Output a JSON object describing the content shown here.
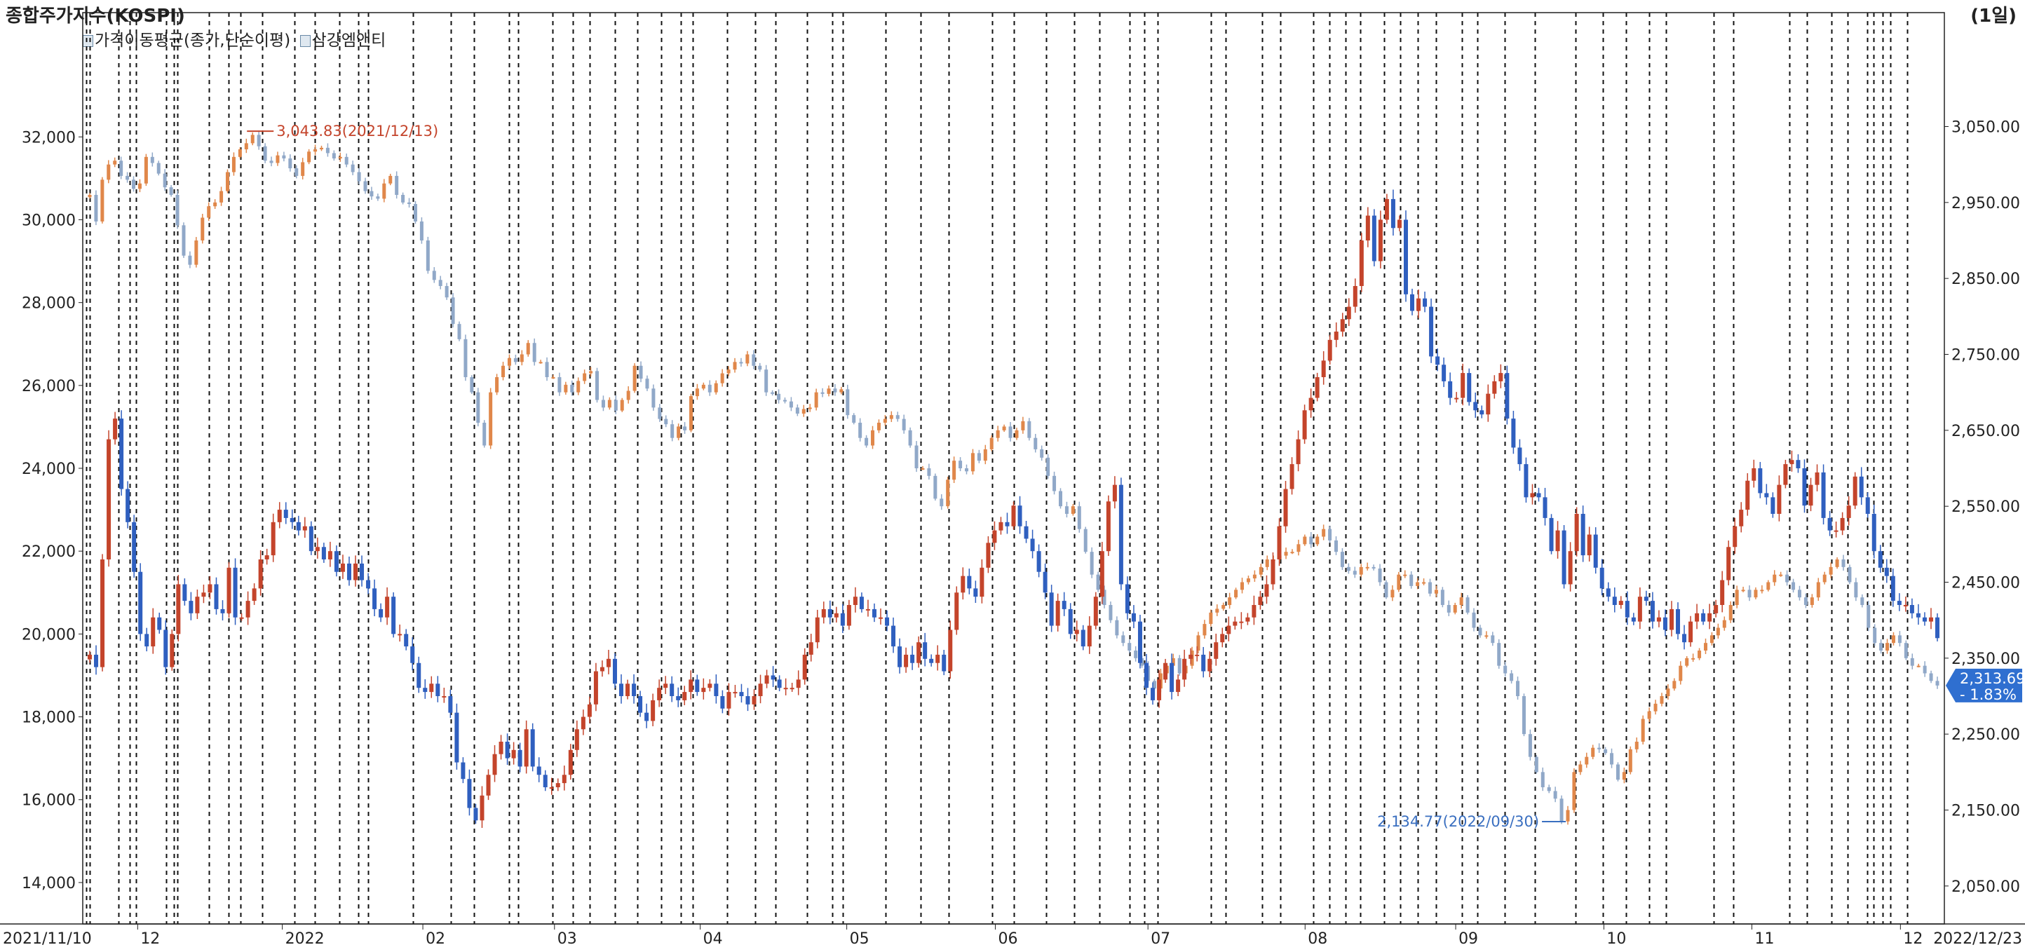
{
  "header": {
    "title": "종합주가지수(KOSPI)",
    "period": "(1일)"
  },
  "legend": [
    {
      "label": "가격이동평균(종가,단순이평)",
      "color": "#9fb3c8"
    },
    {
      "label": "삼강엠앤티",
      "color": "#9fb3c8"
    }
  ],
  "chart_data": {
    "type": "candlestick",
    "x_start_label": "2021/11/10",
    "x_end_label": "2022/12/23",
    "x_ticks": [
      "12",
      "2022",
      "02",
      "03",
      "04",
      "05",
      "06",
      "07",
      "08",
      "09",
      "10",
      "11",
      "12"
    ],
    "left_axis": {
      "ticks": [
        "32,000",
        "30,000",
        "28,000",
        "26,000",
        "24,000",
        "22,000",
        "20,000",
        "18,000",
        "16,000",
        "14,000"
      ],
      "range": [
        13000,
        35000
      ]
    },
    "right_axis": {
      "ticks": [
        "3,050.00",
        "2,950.00",
        "2,850.00",
        "2,750.00",
        "2,650.00",
        "2,550.00",
        "2,450.00",
        "2,350.00",
        "2,250.00",
        "2,150.00",
        "2,050.00"
      ],
      "range": [
        2000,
        3200
      ]
    },
    "annotations": {
      "high": {
        "label": "3,043.83(2021/12/13)",
        "date": "2021/12/13",
        "value": 3043.83
      },
      "low": {
        "label": "2,134.77(2022/09/30)",
        "date": "2022/09/30",
        "value": 2134.77
      }
    },
    "last_value": {
      "value": "2,313.69",
      "change": "- 1.83%"
    },
    "colors": {
      "up": "#c4442b",
      "down": "#2f5fbf",
      "kospi_up": "#e0874a",
      "kospi_down": "#90a8c8",
      "up_label": "#c4442b",
      "low_label": "#3a6fc0",
      "last_value_badge": "#2f6fd0"
    },
    "series": [
      {
        "name": "삼강엠앤티",
        "axis": "left",
        "values": [
          19500,
          19200,
          21800,
          24700,
          25200,
          23500,
          22700,
          21500,
          20000,
          19700,
          20400,
          20100,
          19200,
          20000,
          21200,
          20800,
          20500,
          20900,
          21000,
          21200,
          20600,
          20500,
          21600,
          20400,
          20400,
          20800,
          21100,
          21800,
          21900,
          22700,
          23000,
          22800,
          22700,
          22500,
          22600,
          22000,
          22100,
          21800,
          22000,
          21500,
          21700,
          21300,
          21700,
          21300,
          21100,
          20600,
          20400,
          20900,
          20000,
          20000,
          19700,
          19300,
          18700,
          18600,
          18800,
          18500,
          18500,
          18100,
          16900,
          16500,
          15800,
          15500,
          16100,
          16600,
          17100,
          17400,
          17000,
          17200,
          16800,
          17700,
          16800,
          16600,
          16300,
          16300,
          16400,
          16600,
          17200,
          17700,
          18000,
          18300,
          19100,
          19200,
          19400,
          18800,
          18500,
          18800,
          18500,
          18100,
          17900,
          18400,
          18700,
          18800,
          18500,
          18400,
          18600,
          18900,
          18600,
          18700,
          18800,
          18500,
          18200,
          18600,
          18600,
          18500,
          18300,
          18500,
          18800,
          19000,
          18900,
          18700,
          18700,
          18700,
          18900,
          19500,
          19800,
          20400,
          20600,
          20400,
          20500,
          20200,
          20700,
          20900,
          20600,
          20600,
          20400,
          20400,
          20200,
          19700,
          19200,
          19500,
          19300,
          19800,
          19400,
          19300,
          19500,
          19100,
          20100,
          21000,
          21400,
          21100,
          20900,
          21600,
          22200,
          22500,
          22700,
          22600,
          23100,
          22600,
          22300,
          22000,
          21500,
          21000,
          20200,
          20800,
          20600,
          20000,
          20100,
          19700,
          20200,
          20900,
          22000,
          23200,
          23600,
          21200,
          20500,
          20300,
          19300,
          18700,
          18400,
          18900,
          19300,
          18600,
          18900,
          19400,
          19500,
          19500,
          19100,
          19400,
          19800,
          20000,
          20200,
          20300,
          20300,
          20400,
          20700,
          20900,
          21200,
          21800,
          22600,
          23500,
          24100,
          24700,
          25400,
          25700,
          26200,
          26600,
          27100,
          27300,
          27600,
          27900,
          28400,
          29500,
          30100,
          29000,
          30000,
          30500,
          29800,
          30000,
          28200,
          27800,
          28100,
          27900,
          26700,
          26500,
          26100,
          25700,
          25700,
          26300,
          25600,
          25400,
          25300,
          25800,
          26100,
          26300,
          25200,
          24500,
          24100,
          23300,
          23400,
          23300,
          22800,
          22000,
          22500,
          21200,
          22000,
          22900,
          21900,
          22400,
          21600,
          21100,
          20900,
          20700,
          20800,
          20400,
          20300,
          20900,
          20800,
          20300,
          20400,
          20100,
          20600,
          20000,
          19800,
          20300,
          20500,
          20300,
          20500,
          20700,
          21300,
          22100,
          22600,
          23000,
          23700,
          24000,
          23400,
          23300,
          22900,
          23600,
          24100,
          24200,
          24000,
          23100,
          23600,
          23900,
          22800,
          22500,
          22500,
          22800,
          23100,
          23800,
          23300,
          22900,
          22000,
          21600,
          21400,
          20800,
          20700,
          20700,
          20500,
          20400,
          20300,
          20400,
          19900
        ]
      },
      {
        "name": "종합주가지수(KOSPI)",
        "axis": "right",
        "values": [
          2960,
          2925,
          2980,
          3000,
          3005,
          2985,
          2980,
          2968,
          2975,
          3010,
          3002,
          2988,
          2970,
          2960,
          2920,
          2880,
          2868,
          2900,
          2930,
          2945,
          2950,
          2965,
          2990,
          3010,
          3020,
          3028,
          3039,
          3024,
          3005,
          3002,
          3012,
          3008,
          2995,
          2985,
          3003,
          3017,
          3020,
          3022,
          3015,
          3008,
          3010,
          3000,
          2990,
          2978,
          2965,
          2958,
          2955,
          2975,
          2985,
          2960,
          2950,
          2948,
          2925,
          2900,
          2860,
          2848,
          2840,
          2825,
          2790,
          2770,
          2720,
          2700,
          2660,
          2630,
          2700,
          2720,
          2735,
          2745,
          2740,
          2750,
          2765,
          2740,
          2740,
          2720,
          2720,
          2700,
          2710,
          2700,
          2715,
          2725,
          2728,
          2690,
          2680,
          2690,
          2676,
          2690,
          2702,
          2735,
          2718,
          2705,
          2680,
          2665,
          2658,
          2640,
          2655,
          2650,
          2695,
          2705,
          2710,
          2700,
          2712,
          2725,
          2730,
          2740,
          2738,
          2750,
          2735,
          2730,
          2700,
          2698,
          2690,
          2688,
          2680,
          2672,
          2678,
          2680,
          2700,
          2698,
          2705,
          2700,
          2704,
          2670,
          2660,
          2640,
          2630,
          2650,
          2660,
          2665,
          2670,
          2665,
          2650,
          2630,
          2600,
          2600,
          2590,
          2560,
          2550,
          2585,
          2610,
          2600,
          2596,
          2620,
          2610,
          2625,
          2640,
          2650,
          2655,
          2640,
          2650,
          2662,
          2640,
          2625,
          2614,
          2590,
          2570,
          2550,
          2540,
          2550,
          2520,
          2490,
          2460,
          2440,
          2420,
          2400,
          2380,
          2370,
          2360,
          2350,
          2340,
          2320,
          2310,
          2330,
          2340,
          2350,
          2330,
          2340,
          2360,
          2380,
          2395,
          2410,
          2415,
          2420,
          2430,
          2440,
          2450,
          2455,
          2460,
          2470,
          2480,
          2480,
          2485,
          2490,
          2490,
          2500,
          2510,
          2500,
          2510,
          2520,
          2505,
          2490,
          2470,
          2465,
          2460,
          2470,
          2470,
          2468,
          2450,
          2430,
          2440,
          2460,
          2460,
          2445,
          2450,
          2450,
          2435,
          2440,
          2420,
          2410,
          2420,
          2430,
          2410,
          2390,
          2380,
          2380,
          2370,
          2340,
          2330,
          2320,
          2300,
          2250,
          2220,
          2200,
          2180,
          2175,
          2165,
          2135,
          2150,
          2200,
          2210,
          2220,
          2232,
          2230,
          2225,
          2210,
          2190,
          2200,
          2230,
          2240,
          2270,
          2280,
          2290,
          2300,
          2310,
          2320,
          2340,
          2350,
          2350,
          2360,
          2370,
          2380,
          2390,
          2400,
          2420,
          2440,
          2440,
          2430,
          2440,
          2440,
          2450,
          2460,
          2460,
          2450,
          2440,
          2430,
          2420,
          2430,
          2450,
          2460,
          2470,
          2480,
          2470,
          2450,
          2430,
          2420,
          2390,
          2370,
          2360,
          2370,
          2380,
          2370,
          2350,
          2340,
          2340,
          2330,
          2320,
          2314
        ]
      }
    ]
  }
}
